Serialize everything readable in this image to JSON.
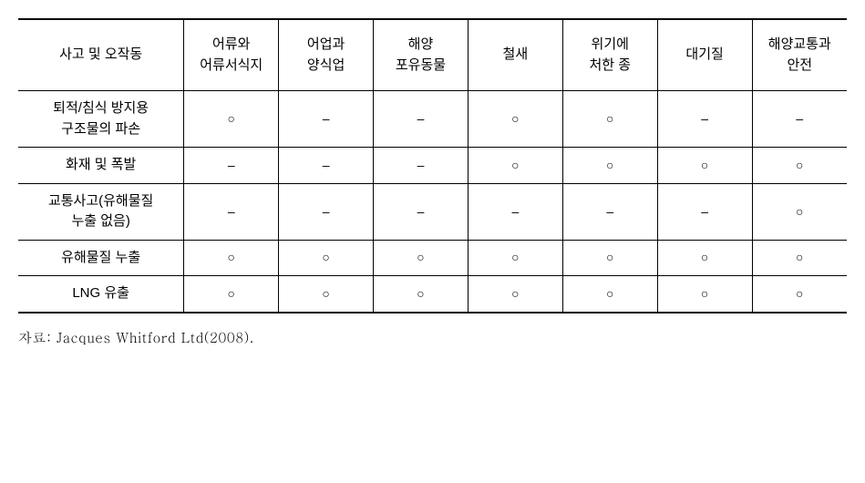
{
  "table": {
    "columns": [
      "사고 및 오작동",
      "어류와\n어류서식지",
      "어업과\n양식업",
      "해양\n포유동물",
      "철새",
      "위기에\n처한 종",
      "대기질",
      "해양교통과\n안전"
    ],
    "rows": [
      {
        "label": "퇴적/침식 방지용\n구조물의 파손",
        "cells": [
          "○",
          "–",
          "–",
          "○",
          "○",
          "–",
          "–"
        ]
      },
      {
        "label": "화재 및 폭발",
        "cells": [
          "–",
          "–",
          "–",
          "○",
          "○",
          "○",
          "○"
        ]
      },
      {
        "label": "교통사고(유해물질\n누출 없음)",
        "cells": [
          "–",
          "–",
          "–",
          "–",
          "–",
          "–",
          "○"
        ]
      },
      {
        "label": "유해물질 누출",
        "cells": [
          "○",
          "○",
          "○",
          "○",
          "○",
          "○",
          "○"
        ]
      },
      {
        "label": "LNG 유출",
        "cells": [
          "○",
          "○",
          "○",
          "○",
          "○",
          "○",
          "○"
        ]
      }
    ]
  },
  "source": "자료: Jacques Whitford Ltd(2008).",
  "styling": {
    "border_color": "#000000",
    "background_color": "#ffffff",
    "header_border_top_width": 2,
    "header_border_bottom_width": 1,
    "row_border_width": 1,
    "last_row_border_width": 2,
    "font_size": 15,
    "symbol_circle": "○",
    "symbol_dash": "–"
  }
}
